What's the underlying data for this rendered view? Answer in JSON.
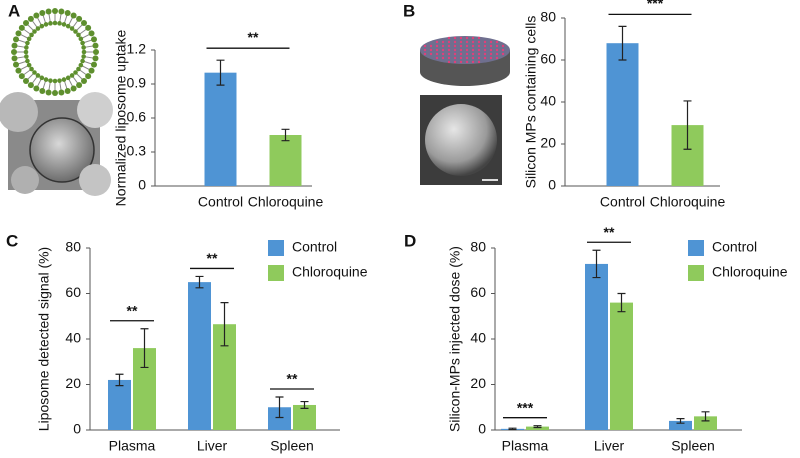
{
  "chart_data": [
    {
      "type": "bar",
      "label": "A",
      "ylabel": "Normalized liposome uptake",
      "categories": [
        "Control",
        "Chloroquine"
      ],
      "values": [
        1.0,
        0.45
      ],
      "errors": [
        0.11,
        0.05
      ],
      "colors": [
        "#4f94d4",
        "#8fca5c"
      ],
      "ylim": [
        0,
        1.2
      ],
      "yticks": [
        0,
        0.3,
        0.6,
        0.9,
        1.2
      ],
      "significance": "**"
    },
    {
      "type": "bar",
      "label": "B",
      "ylabel": "Silicon MPs containing cells",
      "categories": [
        "Control",
        "Chloroquine"
      ],
      "values": [
        68,
        29
      ],
      "errors": [
        8,
        11.5
      ],
      "colors": [
        "#4f94d4",
        "#8fca5c"
      ],
      "ylim": [
        0,
        80
      ],
      "yticks": [
        0,
        20,
        40,
        60,
        80
      ],
      "significance": "***"
    },
    {
      "type": "grouped-bar",
      "label": "C",
      "ylabel": "Liposome detected signal (%)",
      "categories": [
        "Plasma",
        "Liver",
        "Spleen"
      ],
      "series": [
        {
          "name": "Control",
          "color": "#4f94d4",
          "values": [
            22,
            65,
            10
          ],
          "errors": [
            2.5,
            2.5,
            4.5
          ]
        },
        {
          "name": "Chloroquine",
          "color": "#8fca5c",
          "values": [
            36,
            46.5,
            11
          ],
          "errors": [
            8.5,
            9.5,
            1.5
          ]
        }
      ],
      "ylim": [
        0,
        80
      ],
      "yticks": [
        0,
        20,
        40,
        60,
        80
      ],
      "significance": [
        "**",
        "**",
        "**"
      ],
      "legend": "upper right"
    },
    {
      "type": "grouped-bar",
      "label": "D",
      "ylabel": "Silicon-MPs injected dose (%)",
      "categories": [
        "Plasma",
        "Liver",
        "Spleen"
      ],
      "series": [
        {
          "name": "Control",
          "color": "#4f94d4",
          "values": [
            0.5,
            73,
            4
          ],
          "errors": [
            0.3,
            6,
            1
          ]
        },
        {
          "name": "Chloroquine",
          "color": "#8fca5c",
          "values": [
            1.5,
            56,
            6
          ],
          "errors": [
            0.4,
            4,
            2
          ]
        }
      ],
      "ylim": [
        0,
        80
      ],
      "yticks": [
        0,
        20,
        40,
        60,
        80
      ],
      "significance": [
        "***",
        "**",
        null
      ],
      "legend": "upper right"
    }
  ]
}
